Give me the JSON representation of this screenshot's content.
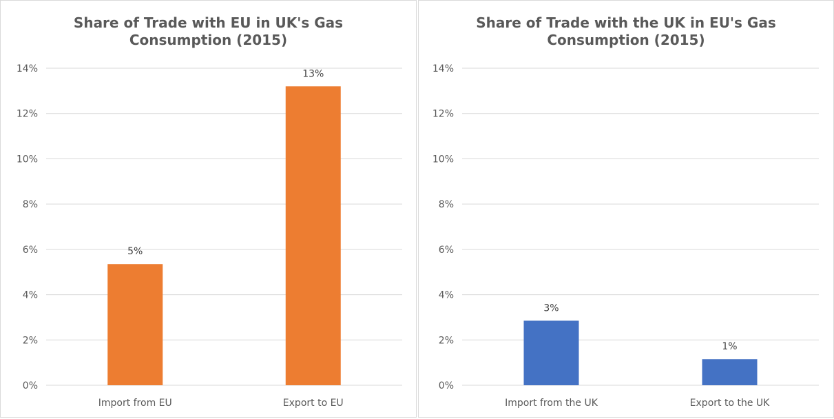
{
  "chart_data": [
    {
      "type": "bar",
      "title_lines": [
        "Share of Trade with EU in UK's Gas",
        "Consumption (2015)"
      ],
      "categories": [
        "Import from EU",
        "Export to EU"
      ],
      "values": [
        5.35,
        13.2
      ],
      "data_labels": [
        "5%",
        "13%"
      ],
      "yticks": [
        "0%",
        "2%",
        "4%",
        "6%",
        "8%",
        "10%",
        "12%",
        "14%"
      ],
      "ylim": [
        0,
        14
      ],
      "grid": true,
      "legend": "none",
      "bar_color": "#ed7d31"
    },
    {
      "type": "bar",
      "title_lines": [
        "Share of Trade with the UK in EU's Gas",
        "Consumption (2015)"
      ],
      "categories": [
        "Import from the UK",
        "Export to the UK"
      ],
      "values": [
        2.85,
        1.15
      ],
      "data_labels": [
        "3%",
        "1%"
      ],
      "yticks": [
        "0%",
        "2%",
        "4%",
        "6%",
        "8%",
        "10%",
        "12%",
        "14%"
      ],
      "ylim": [
        0,
        14
      ],
      "grid": true,
      "legend": "none",
      "bar_color": "#4472c4"
    }
  ]
}
